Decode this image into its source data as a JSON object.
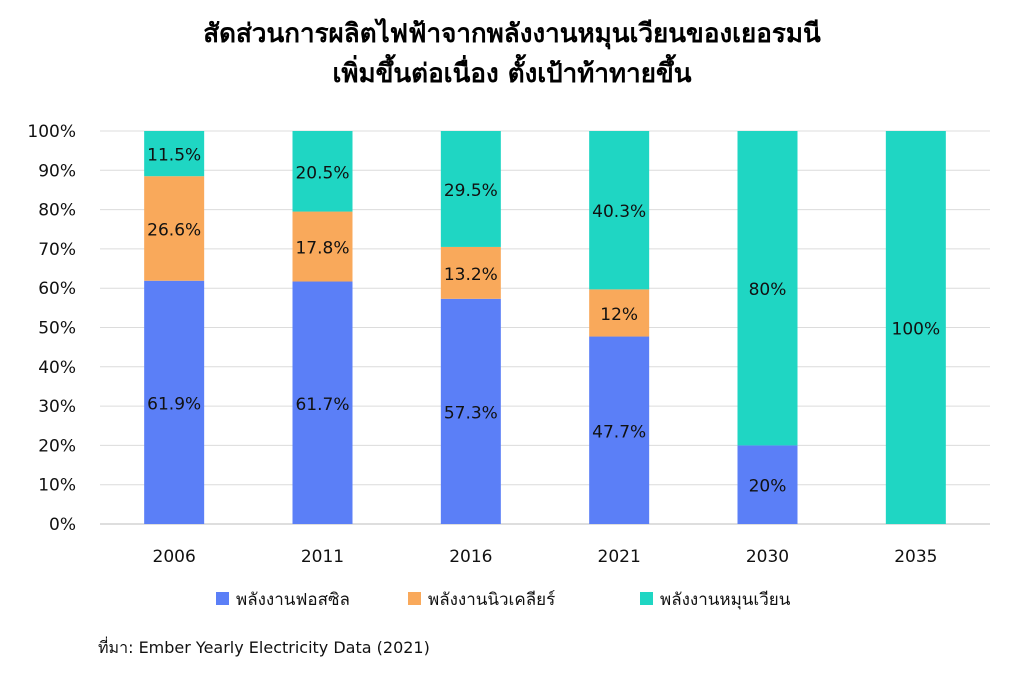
{
  "title": {
    "line1": "สัดส่วนการผลิตไฟฟ้าจากพลังงานหมุนเวียนของเยอรมนี",
    "line2": "เพิ่มขึ้นต่อเนื่อง ตั้งเป้าท้าทายขึ้น"
  },
  "source": {
    "label": "ที่มา:",
    "text": "Ember Yearly Electricity Data (2021)"
  },
  "chart_data": {
    "type": "bar",
    "stacked": true,
    "categories": [
      "2006",
      "2011",
      "2016",
      "2021",
      "2030",
      "2035"
    ],
    "series": [
      {
        "name": "พลังงานฟอสซิล",
        "color": "#5b7ff7",
        "values": [
          61.9,
          61.7,
          57.3,
          47.7,
          20,
          0
        ],
        "labels": [
          "61.9%",
          "61.7%",
          "57.3%",
          "47.7%",
          "20%",
          ""
        ]
      },
      {
        "name": "พลังงานนิวเคลียร์",
        "color": "#f9a95b",
        "values": [
          26.6,
          17.8,
          13.2,
          12,
          0,
          0
        ],
        "labels": [
          "26.6%",
          "17.8%",
          "13.2%",
          "12%",
          "",
          ""
        ]
      },
      {
        "name": "พลังงานหมุนเวียน",
        "color": "#1fd6c3",
        "values": [
          11.5,
          20.5,
          29.5,
          40.3,
          80,
          100
        ],
        "labels": [
          "11.5%",
          "20.5%",
          "29.5%",
          "40.3%",
          "80%",
          "100%"
        ]
      }
    ],
    "ylim": [
      0,
      100
    ],
    "yticks": [
      "0%",
      "10%",
      "20%",
      "30%",
      "40%",
      "50%",
      "60%",
      "70%",
      "80%",
      "90%",
      "100%"
    ],
    "grid": true,
    "legend_position": "bottom"
  }
}
